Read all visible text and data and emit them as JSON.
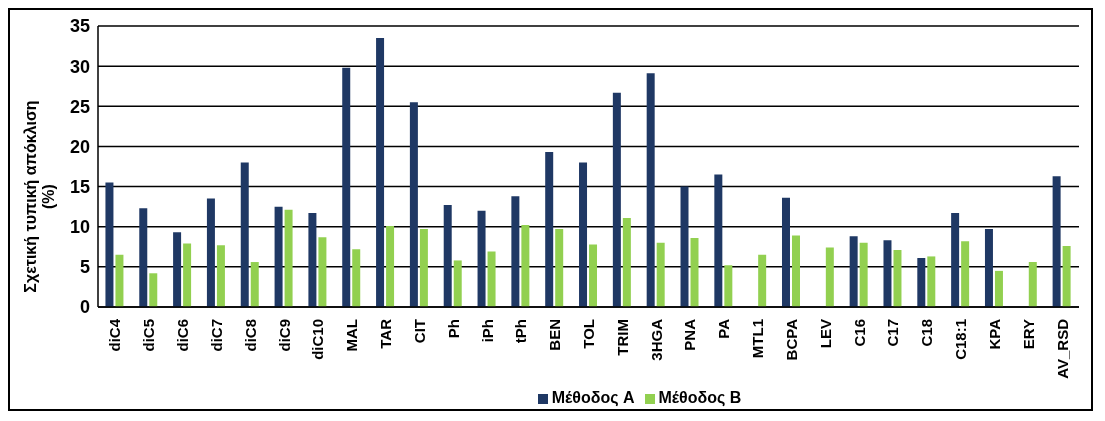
{
  "chart_data": {
    "type": "bar",
    "ylabel": "Σχετική τυπική απόκλιση (%)",
    "categories": [
      "diC4",
      "diC5",
      "diC6",
      "diC7",
      "diC8",
      "diC9",
      "diC10",
      "MAL",
      "TAR",
      "CIT",
      "Ph",
      "iPh",
      "tPh",
      "BEN",
      "TOL",
      "TRIM",
      "3HGA",
      "PNA",
      "PA",
      "MTL1",
      "BCPA",
      "LEV",
      "C16",
      "C17",
      "C18",
      "C18:1",
      "KPA",
      "ERY",
      "AV_RSD"
    ],
    "series": [
      {
        "name": "Μέθοδος A",
        "color": "#1f3864",
        "values": [
          15.5,
          12.3,
          9.3,
          13.5,
          18,
          12.5,
          11.7,
          29.8,
          33.5,
          25.5,
          12.7,
          12,
          13.8,
          19.3,
          18,
          26.7,
          29.1,
          15,
          16.5,
          null,
          13.6,
          null,
          8.8,
          8.3,
          6.1,
          11.7,
          9.7,
          null,
          16.3
        ]
      },
      {
        "name": "Μέθοδος B",
        "color": "#92d050",
        "values": [
          6.5,
          4.2,
          7.9,
          7.7,
          5.6,
          12.1,
          8.7,
          7.2,
          10.1,
          9.7,
          5.8,
          6.9,
          10.2,
          9.7,
          7.8,
          11.1,
          8,
          8.6,
          5.2,
          6.5,
          8.9,
          7.4,
          8,
          7.1,
          6.3,
          8.2,
          4.5,
          5.6,
          7.6
        ]
      }
    ],
    "ylim": [
      0,
      35
    ],
    "yticks": [
      0,
      5,
      10,
      15,
      20,
      25,
      30,
      35
    ],
    "grid": "y",
    "legend": "bottom"
  }
}
